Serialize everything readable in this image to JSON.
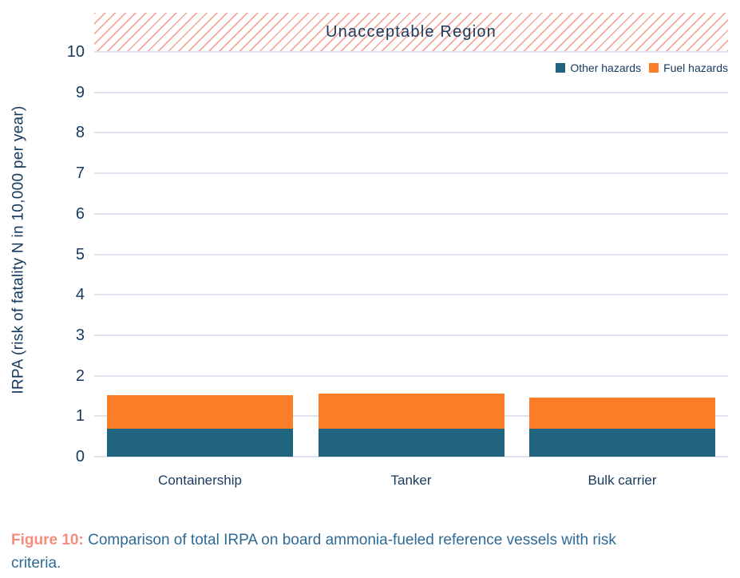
{
  "chart_data": {
    "type": "bar",
    "stacked": true,
    "categories": [
      "Containership",
      "Tanker",
      "Bulk carrier"
    ],
    "series": [
      {
        "name": "Other hazards",
        "color": "#21647f",
        "values": [
          0.7,
          0.7,
          0.7
        ]
      },
      {
        "name": "Fuel hazards",
        "color": "#fb7d28",
        "values": [
          0.81,
          0.86,
          0.76
        ]
      }
    ],
    "stack_totals": [
      1.51,
      1.56,
      1.46
    ],
    "title": "",
    "xlabel": "",
    "ylabel": "IRPA (risk of fatality N in 10,000 per year)",
    "ylim": [
      0,
      10
    ],
    "yticks": [
      0,
      1,
      2,
      3,
      4,
      5,
      6,
      7,
      8,
      9,
      10
    ],
    "grid": true,
    "legend_position": "top-right",
    "annotation": "Unacceptable Region",
    "annotation_region": "hatched band above y = 10"
  },
  "caption": {
    "label": "Figure 10:",
    "text": "Comparison of total IRPA on board ammonia-fueled reference vessels with risk criteria."
  },
  "colors": {
    "other_hazards": "#21647f",
    "fuel_hazards": "#fb7d28",
    "hatch_line": "#f3a89b",
    "grid_line": "#dde3ec",
    "axis_text": "#16395d",
    "caption_accent": "#f58d7d",
    "caption_text": "#2e6b94"
  }
}
